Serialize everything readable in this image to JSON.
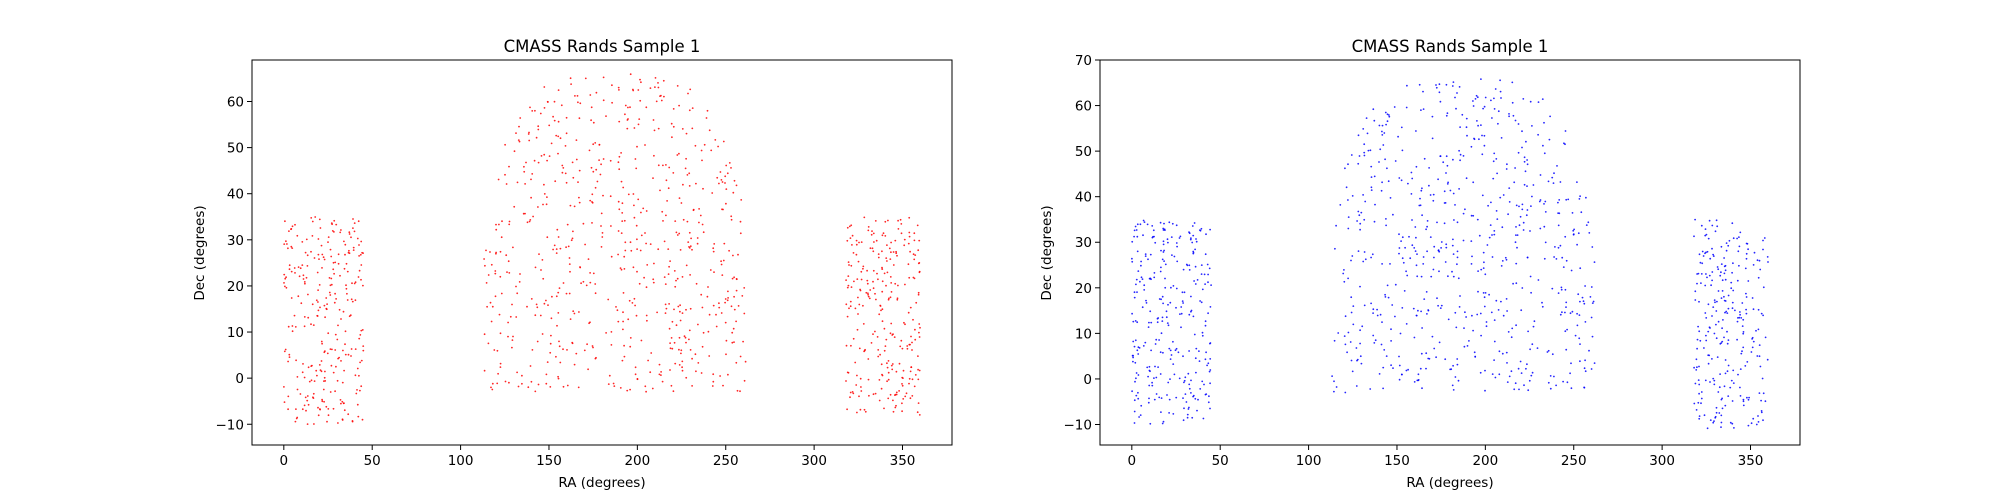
{
  "figure": {
    "background": "#ffffff"
  },
  "chart_data": [
    {
      "type": "scatter",
      "title": "CMASS Rands Sample 1",
      "xlabel": "RA (degrees)",
      "ylabel": "Dec (degrees)",
      "xlim": [
        -18,
        378
      ],
      "ylim": [
        -14.5,
        69
      ],
      "xticks": [
        0,
        50,
        100,
        150,
        200,
        250,
        300,
        350
      ],
      "yticks": [
        -10,
        0,
        10,
        20,
        30,
        40,
        50,
        60
      ],
      "grid": false,
      "legend": "none",
      "color": "#ff0000",
      "point_style": "small dots",
      "seed": 12345,
      "regions": [
        {
          "n": 280,
          "ra": [
            0,
            45
          ],
          "dec": [
            -10,
            35
          ]
        },
        {
          "n": 650,
          "ra": [
            113,
            262
          ],
          "dec": [
            -3,
            66
          ]
        },
        {
          "n": 270,
          "ra": [
            318,
            360
          ],
          "dec": [
            -8,
            35
          ]
        }
      ]
    },
    {
      "type": "scatter",
      "title": "CMASS Rands Sample 1",
      "xlabel": "RA (degrees)",
      "ylabel": "Dec (degrees)",
      "xlim": [
        -18,
        378
      ],
      "ylim": [
        -14.5,
        70
      ],
      "xticks": [
        0,
        50,
        100,
        150,
        200,
        250,
        300,
        350
      ],
      "yticks": [
        -10,
        0,
        10,
        20,
        30,
        40,
        50,
        60,
        70
      ],
      "grid": false,
      "legend": "none",
      "color": "#0000ff",
      "point_style": "small dots",
      "seed": 67890,
      "regions": [
        {
          "n": 290,
          "ra": [
            0,
            45
          ],
          "dec": [
            -10,
            35
          ]
        },
        {
          "n": 640,
          "ra": [
            113,
            262
          ],
          "dec": [
            -3,
            66
          ]
        },
        {
          "n": 260,
          "ra": [
            318,
            360
          ],
          "dec": [
            -11,
            35
          ]
        }
      ]
    }
  ]
}
